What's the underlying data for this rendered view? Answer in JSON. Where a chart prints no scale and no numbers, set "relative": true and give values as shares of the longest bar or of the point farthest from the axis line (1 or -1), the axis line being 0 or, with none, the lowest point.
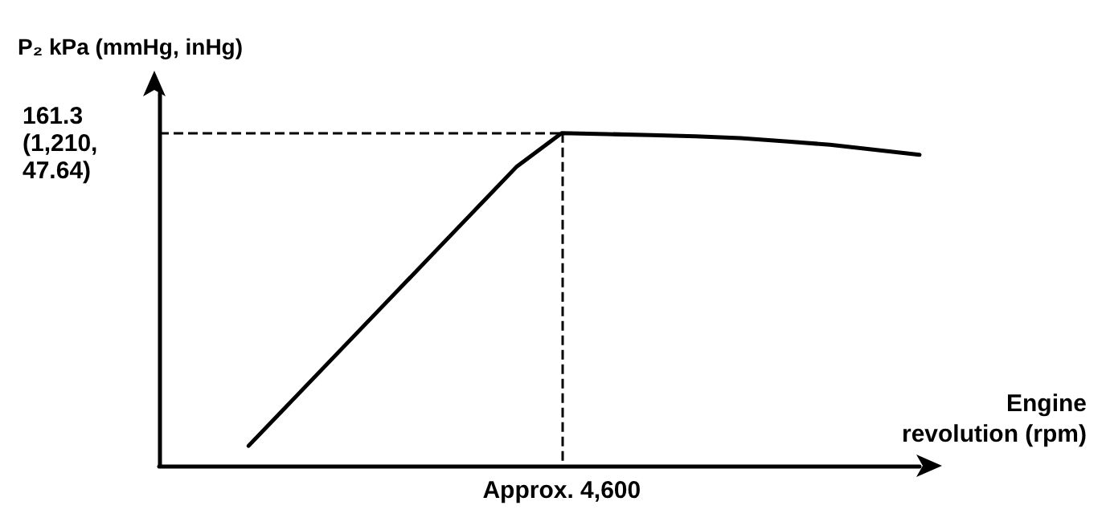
{
  "chart_data": {
    "type": "line",
    "relative": true,
    "ylabel": "P₂ kPa (mmHg, inHg)",
    "xlabel": "Engine\nrevolution (rpm)",
    "categories": [
      null,
      null,
      null,
      null,
      null,
      null,
      null,
      null,
      null,
      null,
      null,
      null,
      null,
      null,
      null,
      null,
      null,
      null
    ],
    "series": [
      {
        "color": "#000000",
        "values": [
          null,
          null,
          0.06,
          0.2,
          0.34,
          0.48,
          0.62,
          0.76,
          0.9,
          1.0,
          0.997,
          0.994,
          0.99,
          0.985,
          0.975,
          0.965,
          0.95,
          0.935
        ]
      }
    ],
    "ref_lines": [
      {
        "axis": "y",
        "value": 1,
        "line_style": "dashed",
        "color": "#000000"
      },
      {
        "axis": "x",
        "label": "Approx. 4,600",
        "line_style": "dashed",
        "color": "#000000"
      }
    ],
    "annotations": [
      "161.3\n(1,210,\n47.64)"
    ],
    "grid": false,
    "marker": "none",
    "line_style": "solid"
  }
}
